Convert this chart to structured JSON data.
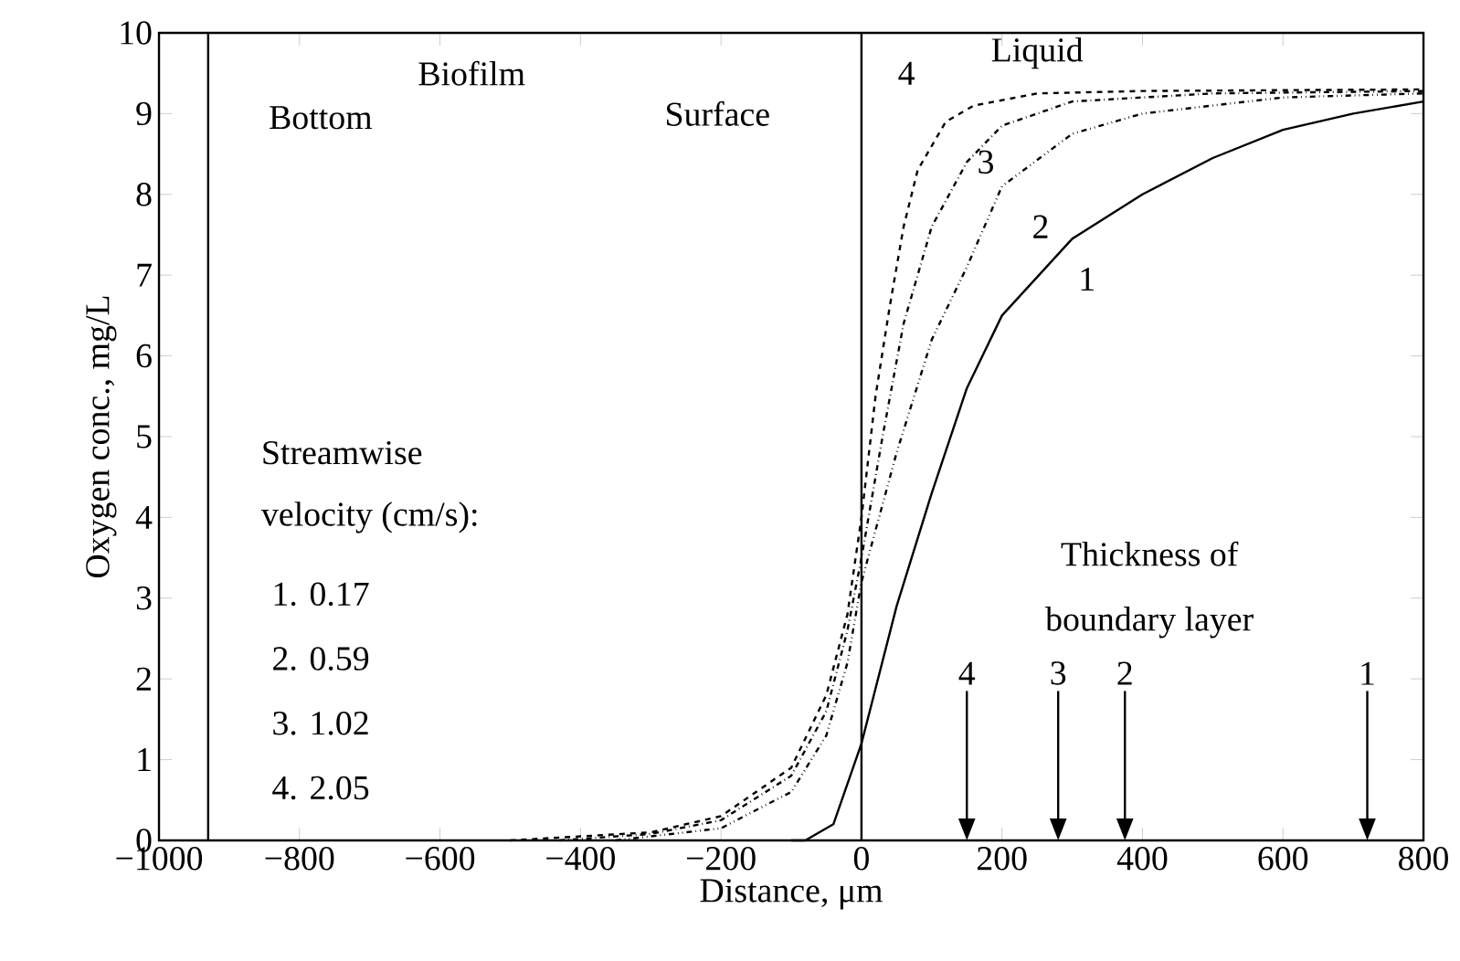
{
  "chart_data": {
    "type": "line",
    "xlabel": "Distance, μm",
    "ylabel": "Oxygen conc., mg/L",
    "xlim": [
      -1000,
      800
    ],
    "xticks": [
      {
        "value": -1000,
        "label": "−1000"
      },
      {
        "value": -800,
        "label": "−800"
      },
      {
        "value": -600,
        "label": "−600"
      },
      {
        "value": -400,
        "label": "−400"
      },
      {
        "value": -200,
        "label": "−200"
      },
      0,
      200,
      400,
      600,
      800
    ],
    "ylim": [
      0,
      10
    ],
    "yticks": [
      0,
      1,
      2,
      3,
      4,
      5,
      6,
      7,
      8,
      9,
      10
    ],
    "grid": false,
    "marker": "none",
    "series": [
      {
        "color": "#000000",
        "line_style": "solid",
        "x": [
          -100,
          -80,
          -40,
          0,
          50,
          100,
          150,
          200,
          300,
          400,
          500,
          600,
          700,
          800
        ],
        "values": [
          0,
          0,
          0.2,
          1.2,
          2.9,
          4.3,
          5.6,
          6.5,
          7.45,
          8.0,
          8.45,
          8.8,
          9.0,
          9.15
        ]
      },
      {
        "color": "#000000",
        "line_style": "dashdotdotted",
        "x": [
          -350,
          -200,
          -100,
          -50,
          -20,
          0,
          50,
          100,
          150,
          200,
          300,
          400,
          600,
          800
        ],
        "values": [
          0,
          0.15,
          0.6,
          1.3,
          2.2,
          3.2,
          4.8,
          6.2,
          7.1,
          8.1,
          8.75,
          9.0,
          9.2,
          9.25
        ]
      },
      {
        "color": "#000000",
        "line_style": "dashdotted",
        "x": [
          -430,
          -300,
          -200,
          -100,
          -50,
          -20,
          0,
          30,
          60,
          100,
          150,
          200,
          300,
          500,
          800
        ],
        "values": [
          0,
          0.08,
          0.25,
          0.8,
          1.6,
          2.6,
          3.5,
          5.0,
          6.4,
          7.6,
          8.4,
          8.85,
          9.15,
          9.25,
          9.28
        ]
      },
      {
        "color": "#000000",
        "line_style": "dashed",
        "x": [
          -500,
          -300,
          -200,
          -100,
          -50,
          -20,
          0,
          20,
          40,
          60,
          80,
          120,
          160,
          250,
          400,
          800
        ],
        "values": [
          0,
          0.1,
          0.3,
          0.9,
          1.8,
          2.8,
          4.0,
          5.5,
          6.6,
          7.6,
          8.3,
          8.9,
          9.1,
          9.25,
          9.28,
          9.3
        ]
      }
    ],
    "ref_lines": [
      {
        "axis": "x",
        "value": -930,
        "color": "#000000"
      },
      {
        "axis": "x",
        "value": 0,
        "color": "#000000"
      }
    ],
    "annotations": [
      "Bottom",
      "Biofilm",
      "Surface",
      "Liquid",
      "Streamwise",
      "velocity (cm/s):",
      "1.  0.17",
      "2.  0.59",
      "3.  1.02",
      "4.  2.05",
      "Thickness of",
      "boundary layer",
      "1",
      "2",
      "3",
      "4",
      "4",
      "3",
      "2",
      "1"
    ]
  }
}
